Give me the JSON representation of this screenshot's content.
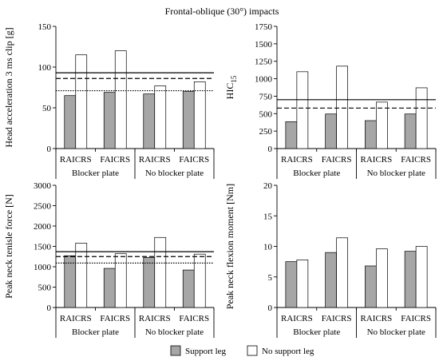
{
  "figure": {
    "title": "Frontal-oblique (30°) impacts",
    "legend": [
      {
        "label": "Support leg",
        "color": "#a6a6a6"
      },
      {
        "label": "No support leg",
        "color": "#ffffff"
      }
    ]
  },
  "chart_data": [
    {
      "type": "bar",
      "ylabel": "Head acceleration 3 ms clip [g]",
      "ylabel_sub": "",
      "ylim": [
        0,
        150
      ],
      "yticks": [
        0,
        50,
        100,
        150
      ],
      "categories": [
        "RAICRS",
        "FAICRS",
        "RAICRS",
        "FAICRS"
      ],
      "groups": [
        "Blocker plate",
        "No blocker plate"
      ],
      "series": [
        {
          "name": "Support leg",
          "values": [
            65,
            69,
            67,
            70
          ]
        },
        {
          "name": "No support leg",
          "values": [
            115,
            120,
            77,
            82
          ]
        }
      ],
      "reference_lines": [
        {
          "style": "solid",
          "value": 93
        },
        {
          "style": "dashed",
          "value": 86
        },
        {
          "style": "dotted",
          "value": 71
        }
      ],
      "grid": false
    },
    {
      "type": "bar",
      "ylabel": "HIC",
      "ylabel_sub": "15",
      "ylim": [
        0,
        1750
      ],
      "yticks": [
        0,
        250,
        500,
        750,
        1000,
        1250,
        1500,
        1750
      ],
      "categories": [
        "RAICRS",
        "FAICRS",
        "RAICRS",
        "FAICRS"
      ],
      "groups": [
        "Blocker plate",
        "No blocker plate"
      ],
      "series": [
        {
          "name": "Support leg",
          "values": [
            385,
            495,
            400,
            495
          ]
        },
        {
          "name": "No support leg",
          "values": [
            1100,
            1180,
            665,
            870
          ]
        }
      ],
      "reference_lines": [
        {
          "style": "solid",
          "value": 700
        },
        {
          "style": "dashed",
          "value": 580
        }
      ],
      "grid": false
    },
    {
      "type": "bar",
      "ylabel": "Peak neck tenisle force [N]",
      "ylabel_sub": "",
      "ylim": [
        0,
        3000
      ],
      "yticks": [
        0,
        500,
        1000,
        1500,
        2000,
        2500,
        3000
      ],
      "categories": [
        "RAICRS",
        "FAICRS",
        "RAICRS",
        "FAICRS"
      ],
      "groups": [
        "Blocker plate",
        "No blocker plate"
      ],
      "series": [
        {
          "name": "Support leg",
          "values": [
            1270,
            960,
            1230,
            920
          ]
        },
        {
          "name": "No support leg",
          "values": [
            1580,
            1320,
            1720,
            1310
          ]
        }
      ],
      "reference_lines": [
        {
          "style": "solid",
          "value": 1370
        },
        {
          "style": "dashed",
          "value": 1250
        },
        {
          "style": "dotted",
          "value": 1090
        }
      ],
      "grid": false
    },
    {
      "type": "bar",
      "ylabel": "Peak neck flexion  moment  [Nm]",
      "ylabel_sub": "",
      "ylim": [
        0,
        20
      ],
      "yticks": [
        0,
        5,
        10,
        15,
        20
      ],
      "categories": [
        "RAICRS",
        "FAICRS",
        "RAICRS",
        "FAICRS"
      ],
      "groups": [
        "Blocker plate",
        "No blocker plate"
      ],
      "series": [
        {
          "name": "Support leg",
          "values": [
            7.5,
            9.0,
            6.8,
            9.2
          ]
        },
        {
          "name": "No support leg",
          "values": [
            7.8,
            11.4,
            9.6,
            10.0
          ]
        }
      ],
      "reference_lines": [],
      "grid": false
    }
  ]
}
